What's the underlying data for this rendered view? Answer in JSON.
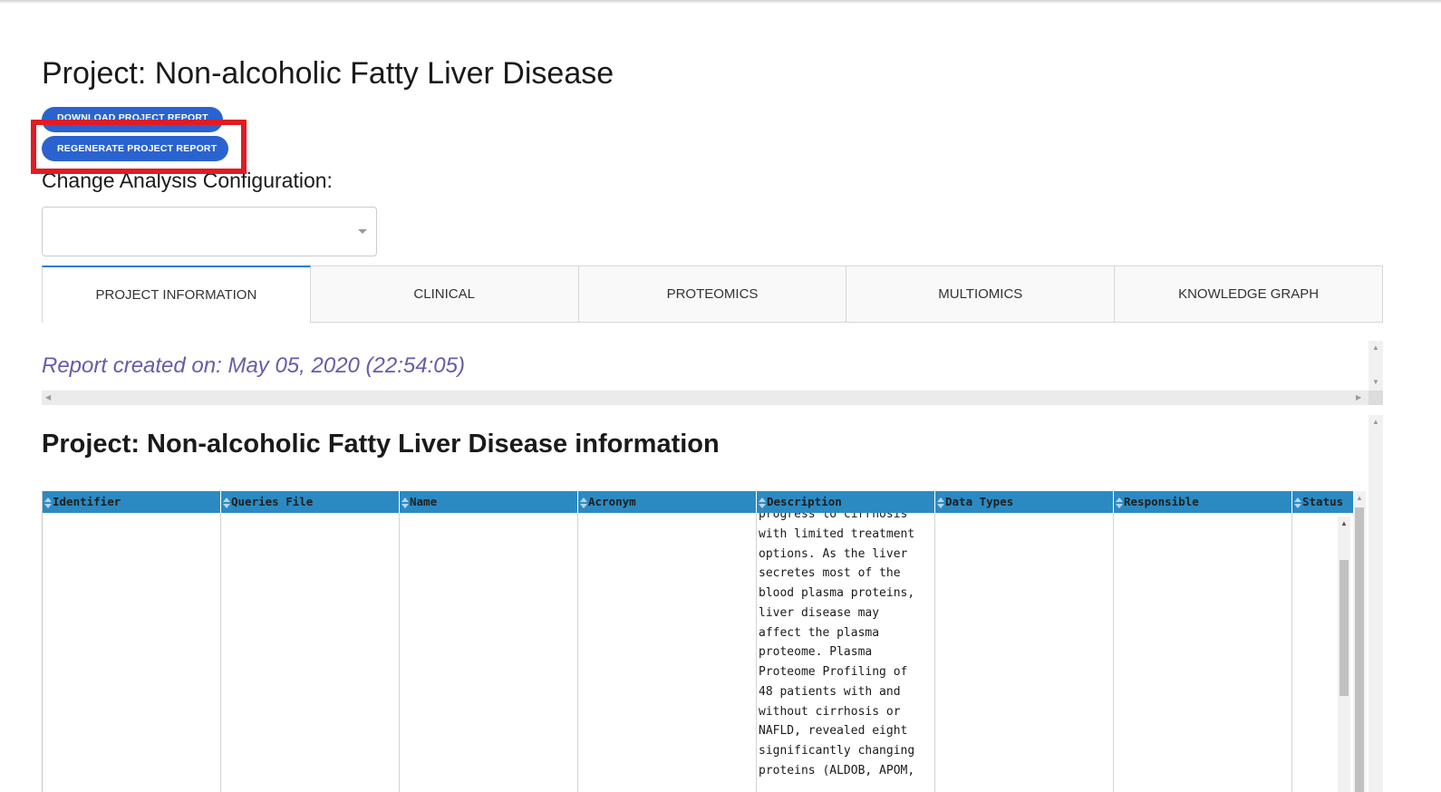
{
  "page": {
    "title": "Project: Non-alcoholic Fatty Liver Disease"
  },
  "buttons": {
    "download_label": "DOWNLOAD PROJECT REPORT",
    "regenerate_label": "REGENERATE PROJECT REPORT"
  },
  "config": {
    "label": "Change Analysis  Configuration:",
    "selected": ""
  },
  "tabs": [
    {
      "label": "PROJECT INFORMATION"
    },
    {
      "label": "CLINICAL"
    },
    {
      "label": "PROTEOMICS"
    },
    {
      "label": "MULTIOMICS"
    },
    {
      "label": "KNOWLEDGE GRAPH"
    }
  ],
  "report": {
    "created": "Report created on: May 05, 2020 (22:54:05)"
  },
  "section": {
    "title": "Project: Non-alcoholic Fatty Liver Disease information"
  },
  "table": {
    "columns": [
      "Identifier",
      "Queries File",
      "Name",
      "Acronym",
      "Description",
      "Data Types",
      "Responsible",
      "Status"
    ],
    "description_text": "progress to cirrhosis\nwith limited treatment\noptions. As the liver\nsecretes most of the\nblood plasma proteins,\nliver disease may\naffect the plasma\nproteome. Plasma\nProteome Profiling of\n48 patients with and\nwithout cirrhosis or\nNAFLD, revealed eight\nsignificantly changing\nproteins (ALDOB, APOM,"
  },
  "colors": {
    "accent": "#2a63cf",
    "table_header": "#2b8ac2",
    "highlight": "#e21b23",
    "report_date": "#6a5aa8"
  }
}
